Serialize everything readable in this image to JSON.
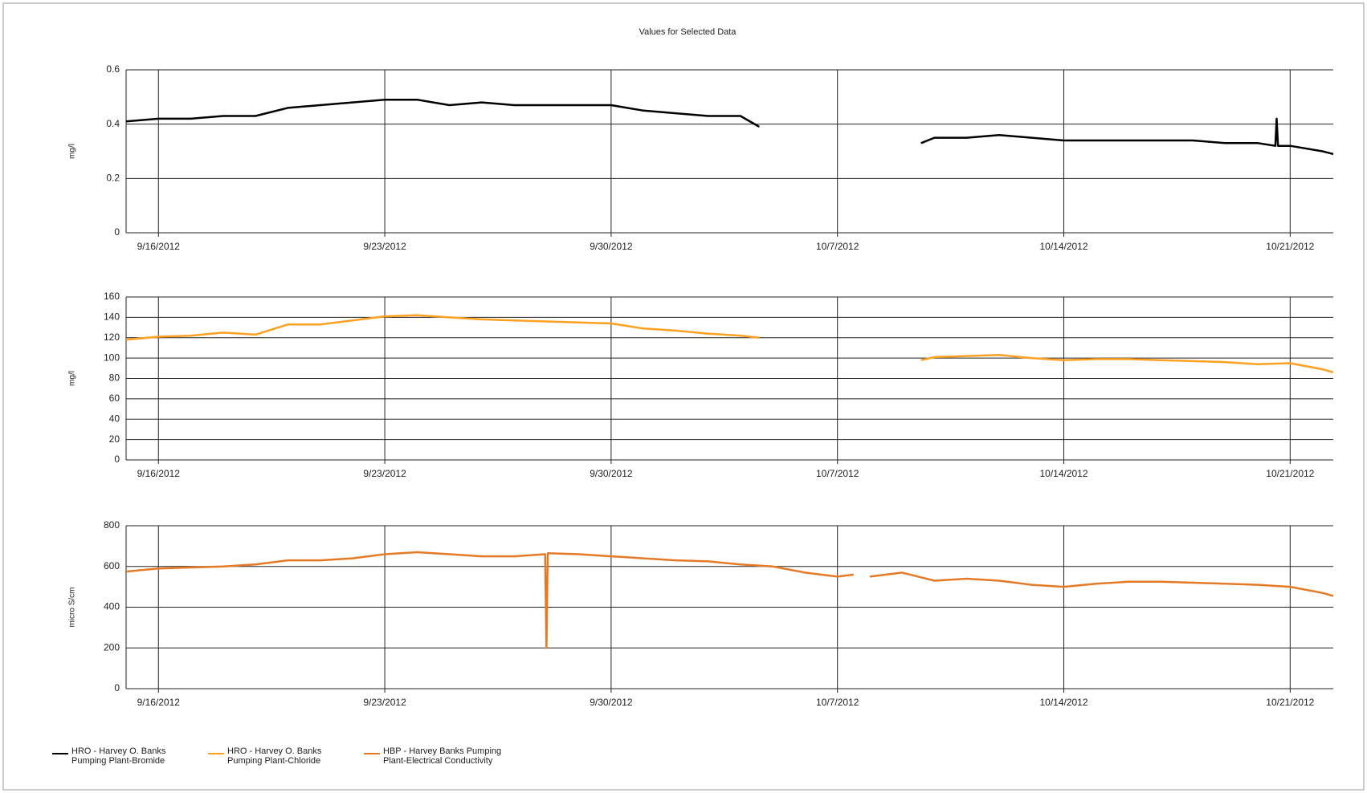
{
  "title": "Values for Selected Data",
  "chart_data": [
    {
      "type": "line",
      "ylabel": "mg/l",
      "x": [
        "2012-09-15",
        "2012-09-16",
        "2012-09-17",
        "2012-09-18",
        "2012-09-19",
        "2012-09-20",
        "2012-09-21",
        "2012-09-22",
        "2012-09-23",
        "2012-09-24",
        "2012-09-25",
        "2012-09-26",
        "2012-09-27",
        "2012-09-28",
        "2012-09-29",
        "2012-09-30",
        "2012-10-01",
        "2012-10-02",
        "2012-10-03",
        "2012-10-04",
        "2012-10-04T14:00",
        "2012-10-07",
        "2012-10-09T14:00",
        "2012-10-10",
        "2012-10-11",
        "2012-10-12",
        "2012-10-13",
        "2012-10-14",
        "2012-10-15",
        "2012-10-16",
        "2012-10-17",
        "2012-10-18",
        "2012-10-19",
        "2012-10-20",
        "2012-10-20T13:00",
        "2012-10-20T14:00",
        "2012-10-20T15:00",
        "2012-10-21",
        "2012-10-22",
        "2012-10-22T08:00"
      ],
      "series": [
        {
          "name": "HRO - Harvey O. Banks Pumping Plant-Bromide",
          "color": "#000000",
          "values": [
            0.41,
            0.42,
            0.42,
            0.43,
            0.43,
            0.46,
            0.47,
            0.48,
            0.49,
            0.49,
            0.47,
            0.48,
            0.47,
            0.47,
            0.47,
            0.47,
            0.45,
            0.44,
            0.43,
            0.43,
            0.39,
            null,
            0.33,
            0.35,
            0.35,
            0.36,
            0.35,
            0.34,
            0.34,
            0.34,
            0.34,
            0.34,
            0.33,
            0.33,
            0.32,
            0.42,
            0.32,
            0.32,
            0.3,
            0.29
          ]
        }
      ],
      "xlim": [
        "2012-09-15",
        "2012-10-22T08:00"
      ],
      "xticks": [
        {
          "value": "2012-09-16",
          "label": "9/16/2012"
        },
        {
          "value": "2012-09-23",
          "label": "9/23/2012"
        },
        {
          "value": "2012-09-30",
          "label": "9/30/2012"
        },
        {
          "value": "2012-10-07",
          "label": "10/7/2012"
        },
        {
          "value": "2012-10-14",
          "label": "10/14/2012"
        },
        {
          "value": "2012-10-21",
          "label": "10/21/2012"
        }
      ],
      "ylim": [
        0,
        0.6
      ],
      "yticks": [
        0,
        0.2,
        0.4,
        0.6
      ],
      "grid": true
    },
    {
      "type": "line",
      "ylabel": "mg/l",
      "x": [
        "2012-09-15",
        "2012-09-16",
        "2012-09-17",
        "2012-09-18",
        "2012-09-19",
        "2012-09-20",
        "2012-09-21",
        "2012-09-22",
        "2012-09-23",
        "2012-09-24",
        "2012-09-25",
        "2012-09-26",
        "2012-09-27",
        "2012-09-28",
        "2012-09-29",
        "2012-09-30",
        "2012-10-01",
        "2012-10-02",
        "2012-10-03",
        "2012-10-04",
        "2012-10-04T14:00",
        "2012-10-07",
        "2012-10-09T14:00",
        "2012-10-10",
        "2012-10-11",
        "2012-10-12",
        "2012-10-13",
        "2012-10-14",
        "2012-10-15",
        "2012-10-16",
        "2012-10-17",
        "2012-10-18",
        "2012-10-19",
        "2012-10-20",
        "2012-10-21",
        "2012-10-22",
        "2012-10-22T08:00"
      ],
      "series": [
        {
          "name": "HRO - Harvey O. Banks Pumping Plant-Chloride",
          "color": "#ffa020",
          "values": [
            118,
            121,
            122,
            125,
            123,
            133,
            133,
            137,
            141,
            142,
            140,
            138,
            137,
            136,
            135,
            134,
            129,
            127,
            124,
            122,
            120,
            null,
            98,
            101,
            102,
            103,
            100,
            98,
            99,
            99,
            98,
            97,
            96,
            94,
            95,
            89,
            86
          ]
        }
      ],
      "xlim": [
        "2012-09-15",
        "2012-10-22T08:00"
      ],
      "xticks": [
        {
          "value": "2012-09-16",
          "label": "9/16/2012"
        },
        {
          "value": "2012-09-23",
          "label": "9/23/2012"
        },
        {
          "value": "2012-09-30",
          "label": "9/30/2012"
        },
        {
          "value": "2012-10-07",
          "label": "10/7/2012"
        },
        {
          "value": "2012-10-14",
          "label": "10/14/2012"
        },
        {
          "value": "2012-10-21",
          "label": "10/21/2012"
        }
      ],
      "ylim": [
        0,
        160
      ],
      "yticks": [
        0,
        20,
        40,
        60,
        80,
        100,
        120,
        140,
        160
      ],
      "grid": true
    },
    {
      "type": "line",
      "ylabel": "micro S/cm",
      "x": [
        "2012-09-15",
        "2012-09-16",
        "2012-09-17",
        "2012-09-18",
        "2012-09-19",
        "2012-09-20",
        "2012-09-21",
        "2012-09-22",
        "2012-09-23",
        "2012-09-24",
        "2012-09-25",
        "2012-09-26",
        "2012-09-27",
        "2012-09-27T23:00",
        "2012-09-28",
        "2012-09-28T01:00",
        "2012-09-29",
        "2012-09-30",
        "2012-10-01",
        "2012-10-02",
        "2012-10-03",
        "2012-10-04",
        "2012-10-05",
        "2012-10-06",
        "2012-10-07",
        "2012-10-07T12:00",
        "2012-10-07T15:00",
        "2012-10-08",
        "2012-10-09",
        "2012-10-10",
        "2012-10-11",
        "2012-10-12",
        "2012-10-13",
        "2012-10-14",
        "2012-10-15",
        "2012-10-16",
        "2012-10-17",
        "2012-10-18",
        "2012-10-19",
        "2012-10-20",
        "2012-10-21",
        "2012-10-22",
        "2012-10-22T08:00"
      ],
      "series": [
        {
          "name": "HBP - Harvey Banks Pumping Plant-Electrical Conductivity",
          "color": "#e57a26",
          "values": [
            575,
            590,
            595,
            600,
            610,
            630,
            630,
            640,
            660,
            670,
            660,
            650,
            650,
            660,
            200,
            665,
            660,
            650,
            640,
            630,
            625,
            610,
            600,
            570,
            550,
            560,
            null,
            550,
            570,
            530,
            540,
            530,
            510,
            500,
            515,
            525,
            525,
            520,
            515,
            510,
            500,
            470,
            455
          ]
        }
      ],
      "xlim": [
        "2012-09-15",
        "2012-10-22T08:00"
      ],
      "xticks": [
        {
          "value": "2012-09-16",
          "label": "9/16/2012"
        },
        {
          "value": "2012-09-23",
          "label": "9/23/2012"
        },
        {
          "value": "2012-09-30",
          "label": "9/30/2012"
        },
        {
          "value": "2012-10-07",
          "label": "10/7/2012"
        },
        {
          "value": "2012-10-14",
          "label": "10/14/2012"
        },
        {
          "value": "2012-10-21",
          "label": "10/21/2012"
        }
      ],
      "ylim": [
        0,
        800
      ],
      "yticks": [
        0,
        200,
        400,
        600,
        800
      ],
      "grid": true
    }
  ]
}
